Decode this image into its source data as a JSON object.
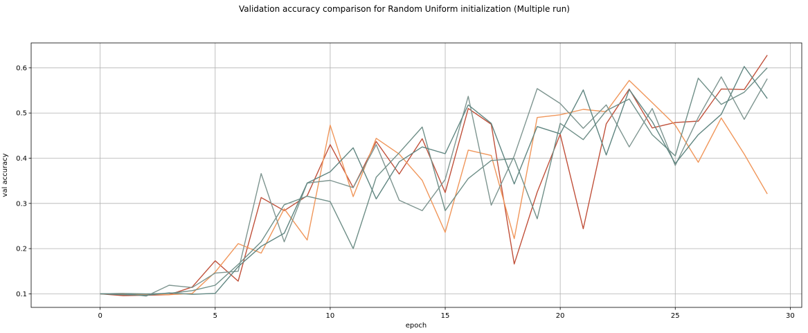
{
  "chart_data": {
    "type": "line",
    "title": "Validation accuracy comparison for Random Uniform initialization (Multiple run)",
    "xlabel": "epoch",
    "ylabel": "val accuracy",
    "xlim": [
      -3,
      30.5
    ],
    "ylim": [
      0.07,
      0.655
    ],
    "x_ticks": [
      0,
      5,
      10,
      15,
      20,
      25,
      30
    ],
    "y_ticks": [
      0.1,
      0.2,
      0.3,
      0.4,
      0.5,
      0.6
    ],
    "grid": true,
    "legend": "none",
    "x": [
      0,
      1,
      2,
      3,
      4,
      5,
      6,
      7,
      8,
      9,
      10,
      11,
      12,
      13,
      14,
      15,
      16,
      17,
      18,
      19,
      20,
      21,
      22,
      23,
      24,
      25,
      26,
      27,
      28,
      29
    ],
    "series": [
      {
        "color": "#c0503a",
        "values": [
          0.1,
          0.096,
          0.097,
          0.098,
          0.115,
          0.173,
          0.128,
          0.313,
          0.284,
          0.317,
          0.43,
          0.335,
          0.437,
          0.365,
          0.443,
          0.324,
          0.51,
          0.475,
          0.166,
          0.325,
          0.453,
          0.244,
          0.476,
          0.553,
          0.467,
          0.479,
          0.482,
          0.553,
          0.552,
          0.628
        ]
      },
      {
        "color": "#f0965a",
        "values": [
          0.1,
          0.099,
          0.099,
          0.098,
          0.101,
          0.148,
          0.211,
          0.19,
          0.288,
          0.219,
          0.473,
          0.315,
          0.444,
          0.409,
          0.351,
          0.236,
          0.418,
          0.406,
          0.222,
          0.49,
          0.496,
          0.508,
          0.503,
          0.572,
          0.523,
          0.473,
          0.391,
          0.489,
          0.409,
          0.321
        ]
      },
      {
        "color": "#6f8f88",
        "values": [
          0.1,
          0.101,
          0.1,
          0.101,
          0.107,
          0.119,
          0.165,
          0.215,
          0.297,
          0.316,
          0.304,
          0.2,
          0.358,
          0.412,
          0.469,
          0.284,
          0.355,
          0.395,
          0.399,
          0.266,
          0.477,
          0.441,
          0.505,
          0.531,
          0.452,
          0.405,
          0.577,
          0.519,
          0.546,
          0.6
        ]
      },
      {
        "color": "#7e9590",
        "values": [
          0.1,
          0.101,
          0.095,
          0.119,
          0.114,
          0.146,
          0.15,
          0.366,
          0.215,
          0.345,
          0.351,
          0.335,
          0.43,
          0.307,
          0.284,
          0.353,
          0.537,
          0.296,
          0.405,
          0.554,
          0.521,
          0.466,
          0.518,
          0.425,
          0.51,
          0.384,
          0.49,
          0.58,
          0.486,
          0.576
        ]
      },
      {
        "color": "#5f8580",
        "values": [
          0.1,
          0.098,
          0.097,
          0.102,
          0.099,
          0.101,
          0.16,
          0.205,
          0.234,
          0.345,
          0.37,
          0.423,
          0.31,
          0.392,
          0.425,
          0.41,
          0.518,
          0.477,
          0.343,
          0.47,
          0.454,
          0.551,
          0.407,
          0.552,
          0.481,
          0.388,
          0.452,
          0.497,
          0.603,
          0.532
        ]
      }
    ]
  }
}
